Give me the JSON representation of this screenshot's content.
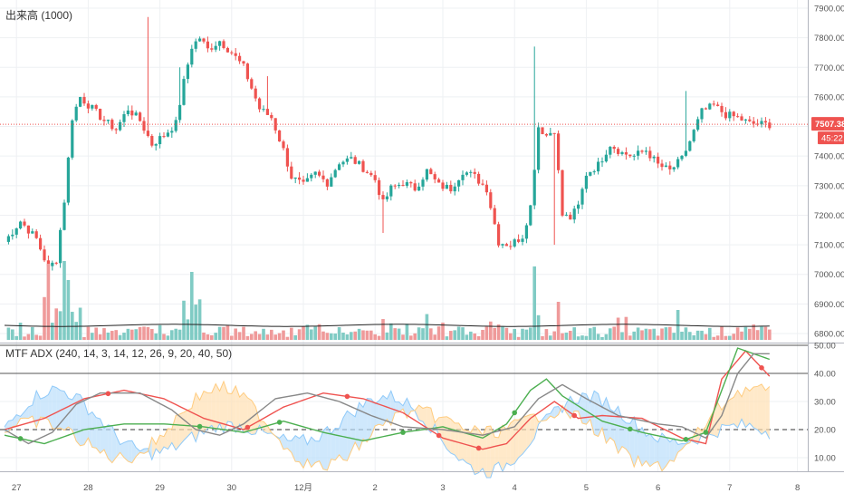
{
  "price_pane": {
    "label": "出来高 (1000)",
    "last_price_label": "7507.38",
    "countdown_label": "45:22"
  },
  "indicator_pane": {
    "label": "MTF ADX (240, 14, 3, 14, 12, 26, 9, 20, 40, 50)"
  },
  "colors": {
    "up": "#26a69a",
    "down": "#ef5350",
    "volume_up": "#80cbc4",
    "volume_down": "#ef9a9a",
    "price_line": "#ef5350",
    "adx_red": "#ef5350",
    "adx_green": "#4caf50",
    "adx_gray": "#888888",
    "di_plus_fill": "#bbdefb",
    "di_minus_fill": "#ffe0b2",
    "grid": "#eef0f3"
  },
  "chart_data": [
    {
      "type": "candlestick",
      "title": "出来高 (1000)",
      "ylim": [
        6790,
        7920
      ],
      "y_ticks": [
        "7900.00",
        "7800.00",
        "7700.00",
        "7600.00",
        "7500.00",
        "7400.00",
        "7300.00",
        "7200.00",
        "7100.00",
        "7000.00",
        "6900.00",
        "6800.00"
      ],
      "x_ticks": [
        "27",
        "28",
        "29",
        "30",
        "12月",
        "2",
        "3",
        "4",
        "5",
        "6",
        "7",
        "8"
      ],
      "last_price": 7507.38,
      "close_path": [
        [
          0,
          7110
        ],
        [
          4,
          7180
        ],
        [
          8,
          7120
        ],
        [
          11,
          7020
        ],
        [
          13,
          7050
        ],
        [
          15,
          7250
        ],
        [
          17,
          7530
        ],
        [
          19,
          7600
        ],
        [
          22,
          7560
        ],
        [
          25,
          7520
        ],
        [
          28,
          7490
        ],
        [
          31,
          7560
        ],
        [
          34,
          7520
        ],
        [
          37,
          7440
        ],
        [
          40,
          7470
        ],
        [
          43,
          7510
        ],
        [
          45,
          7650
        ],
        [
          47,
          7770
        ],
        [
          49,
          7800
        ],
        [
          51,
          7760
        ],
        [
          54,
          7790
        ],
        [
          57,
          7750
        ],
        [
          60,
          7700
        ],
        [
          62,
          7630
        ],
        [
          64,
          7560
        ],
        [
          67,
          7530
        ],
        [
          70,
          7420
        ],
        [
          72,
          7330
        ],
        [
          75,
          7300
        ],
        [
          78,
          7340
        ],
        [
          81,
          7310
        ],
        [
          84,
          7380
        ],
        [
          87,
          7390
        ],
        [
          90,
          7360
        ],
        [
          93,
          7320
        ],
        [
          95,
          7240
        ],
        [
          97,
          7290
        ],
        [
          100,
          7310
        ],
        [
          103,
          7290
        ],
        [
          106,
          7350
        ],
        [
          109,
          7300
        ],
        [
          112,
          7290
        ],
        [
          115,
          7350
        ],
        [
          118,
          7330
        ],
        [
          121,
          7290
        ],
        [
          124,
          7110
        ],
        [
          127,
          7100
        ],
        [
          130,
          7130
        ],
        [
          132,
          7230
        ],
        [
          134,
          7500
        ],
        [
          136,
          7470
        ],
        [
          138,
          7490
        ],
        [
          140,
          7200
        ],
        [
          142,
          7190
        ],
        [
          144,
          7230
        ],
        [
          146,
          7340
        ],
        [
          149,
          7370
        ],
        [
          152,
          7440
        ],
        [
          155,
          7410
        ],
        [
          158,
          7400
        ],
        [
          161,
          7420
        ],
        [
          164,
          7370
        ],
        [
          167,
          7350
        ],
        [
          170,
          7390
        ],
        [
          172,
          7450
        ],
        [
          175,
          7550
        ],
        [
          178,
          7570
        ],
        [
          181,
          7540
        ],
        [
          184,
          7530
        ],
        [
          187,
          7510
        ],
        [
          191,
          7507
        ]
      ],
      "spikes": [
        [
          133,
          7770
        ],
        [
          36,
          7870
        ],
        [
          44,
          7700
        ],
        [
          66,
          7670
        ],
        [
          95,
          7140
        ],
        [
          138,
          7100
        ],
        [
          171,
          7620
        ]
      ],
      "volume_spikes": [
        [
          11,
          280
        ],
        [
          15,
          290
        ],
        [
          16,
          220
        ],
        [
          47,
          250
        ],
        [
          133,
          270
        ],
        [
          139,
          140
        ],
        [
          169,
          110
        ]
      ]
    },
    {
      "type": "line",
      "title": "MTF ADX (240, 14, 3, 14, 12, 26, 9, 20, 40, 50)",
      "ylim": [
        0,
        51
      ],
      "y_ticks": [
        "50.00",
        "40.00",
        "30.00",
        "20.00",
        "10.00"
      ],
      "reference_levels": [
        20,
        40,
        50
      ],
      "series": [
        {
          "color": "red",
          "points": [
            [
              0,
              20
            ],
            [
              10,
              24
            ],
            [
              20,
              31
            ],
            [
              30,
              34
            ],
            [
              40,
              31
            ],
            [
              50,
              24
            ],
            [
              60,
              20
            ],
            [
              70,
              28
            ],
            [
              80,
              33
            ],
            [
              90,
              31
            ],
            [
              100,
              26
            ],
            [
              110,
              17
            ],
            [
              120,
              13
            ],
            [
              126,
              15
            ],
            [
              132,
              24
            ],
            [
              138,
              30
            ],
            [
              144,
              24
            ],
            [
              150,
              25
            ],
            [
              160,
              24
            ],
            [
              170,
              17
            ],
            [
              176,
              15
            ],
            [
              180,
              38
            ],
            [
              186,
              48
            ],
            [
              192,
              39
            ]
          ]
        },
        {
          "color": "green",
          "points": [
            [
              0,
              18
            ],
            [
              10,
              15
            ],
            [
              20,
              20
            ],
            [
              30,
              22
            ],
            [
              40,
              22
            ],
            [
              50,
              21
            ],
            [
              60,
              19
            ],
            [
              70,
              23
            ],
            [
              80,
              19
            ],
            [
              90,
              16
            ],
            [
              100,
              19
            ],
            [
              110,
              21
            ],
            [
              120,
              17
            ],
            [
              126,
              22
            ],
            [
              132,
              34
            ],
            [
              136,
              38
            ],
            [
              140,
              32
            ],
            [
              150,
              23
            ],
            [
              160,
              19
            ],
            [
              170,
              16
            ],
            [
              176,
              19
            ],
            [
              180,
              34
            ],
            [
              184,
              49
            ],
            [
              188,
              47
            ],
            [
              192,
              45
            ]
          ]
        },
        {
          "color": "gray",
          "points": [
            [
              0,
              20
            ],
            [
              6,
              15
            ],
            [
              12,
              19
            ],
            [
              18,
              29
            ],
            [
              24,
              33
            ],
            [
              34,
              33
            ],
            [
              42,
              27
            ],
            [
              48,
              20
            ],
            [
              54,
              18
            ],
            [
              60,
              22
            ],
            [
              68,
              31
            ],
            [
              76,
              33
            ],
            [
              84,
              30
            ],
            [
              92,
              25
            ],
            [
              100,
              21
            ],
            [
              110,
              20
            ],
            [
              120,
              18
            ],
            [
              128,
              21
            ],
            [
              134,
              31
            ],
            [
              140,
              36
            ],
            [
              146,
              31
            ],
            [
              154,
              25
            ],
            [
              164,
              22
            ],
            [
              170,
              21
            ],
            [
              176,
              17
            ],
            [
              180,
              25
            ],
            [
              184,
              40
            ],
            [
              188,
              47
            ],
            [
              192,
              47
            ]
          ]
        }
      ]
    }
  ]
}
